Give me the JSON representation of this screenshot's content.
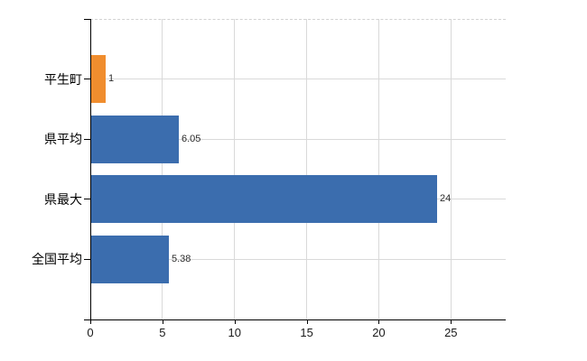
{
  "chart": {
    "background_color": "#ffffff",
    "axis_color": "#000000",
    "grid_color": "#d9d9d9",
    "plot_border_color": "#d2d2d2",
    "category_label_color": "#000000",
    "tick_label_color": "#1a1a1a",
    "value_label_color": "#2b2b2b"
  },
  "chart_data": {
    "type": "bar",
    "orientation": "horizontal",
    "title": "",
    "xlabel": "",
    "ylabel": "",
    "categories": [
      "平生町",
      "県平均",
      "県最大",
      "全国平均"
    ],
    "values": [
      1,
      6.05,
      24,
      5.38
    ],
    "value_labels": [
      "1",
      "6.05",
      "24",
      "5.38"
    ],
    "bar_colors": [
      "#f08d2e",
      "#3b6dae",
      "#3b6dae",
      "#3b6dae"
    ],
    "xlim": [
      0,
      28.8
    ],
    "x_tick_values": [
      0,
      5,
      10,
      15,
      20,
      25
    ],
    "x_tick_labels": [
      "0",
      "5",
      "10",
      "15",
      "20",
      "25"
    ],
    "grid": "on",
    "legend": "none",
    "bar_width_fraction": 0.8
  }
}
